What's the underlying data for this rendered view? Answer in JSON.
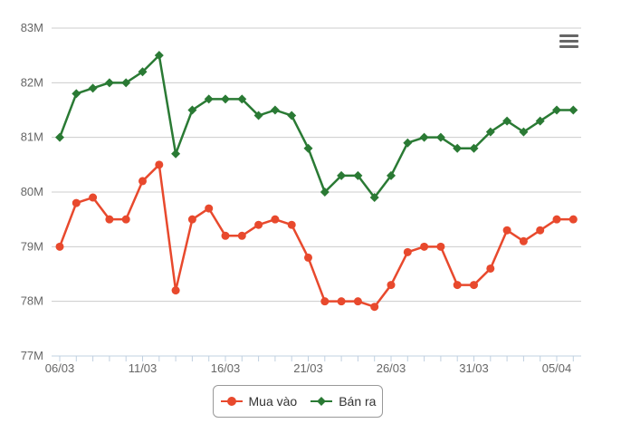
{
  "chart_data": {
    "type": "line",
    "title": "",
    "xlabel": "",
    "ylabel": "",
    "ylim": [
      77,
      83
    ],
    "yticks": [
      "77M",
      "78M",
      "79M",
      "80M",
      "81M",
      "82M",
      "83M"
    ],
    "x": [
      "06/03",
      "07/03",
      "08/03",
      "09/03",
      "10/03",
      "11/03",
      "12/03",
      "13/03",
      "14/03",
      "15/03",
      "16/03",
      "17/03",
      "18/03",
      "19/03",
      "20/03",
      "21/03",
      "22/03",
      "23/03",
      "24/03",
      "25/03",
      "26/03",
      "27/03",
      "28/03",
      "29/03",
      "30/03",
      "31/03",
      "01/04",
      "02/04",
      "03/04",
      "04/04",
      "05/04",
      "06/04"
    ],
    "xtick_labels": [
      "06/03",
      "11/03",
      "16/03",
      "21/03",
      "26/03",
      "31/03",
      "05/04"
    ],
    "grid": true,
    "legend": "bottom-center",
    "series": [
      {
        "name": "Mua vào",
        "color": "#e8492d",
        "marker": "circle",
        "values": [
          79.0,
          79.8,
          79.9,
          79.5,
          79.5,
          80.2,
          80.5,
          78.2,
          79.5,
          79.7,
          79.2,
          79.2,
          79.4,
          79.5,
          79.4,
          78.8,
          78.0,
          78.0,
          78.0,
          77.9,
          78.3,
          78.9,
          79.0,
          79.0,
          78.3,
          78.3,
          78.6,
          79.3,
          79.1,
          79.3,
          79.5,
          79.5
        ]
      },
      {
        "name": "Bán ra",
        "color": "#2a7a34",
        "marker": "diamond",
        "values": [
          81.0,
          81.8,
          81.9,
          82.0,
          82.0,
          82.2,
          82.5,
          80.7,
          81.5,
          81.7,
          81.7,
          81.7,
          81.4,
          81.5,
          81.4,
          80.8,
          80.0,
          80.3,
          80.3,
          79.9,
          80.3,
          80.9,
          81.0,
          81.0,
          80.8,
          80.8,
          81.1,
          81.3,
          81.1,
          81.3,
          81.5,
          81.5
        ]
      }
    ]
  },
  "menu": {
    "icon": "hamburger-menu-icon"
  },
  "legend": {
    "items": [
      {
        "label": "Mua vào"
      },
      {
        "label": "Bán ra"
      }
    ]
  }
}
